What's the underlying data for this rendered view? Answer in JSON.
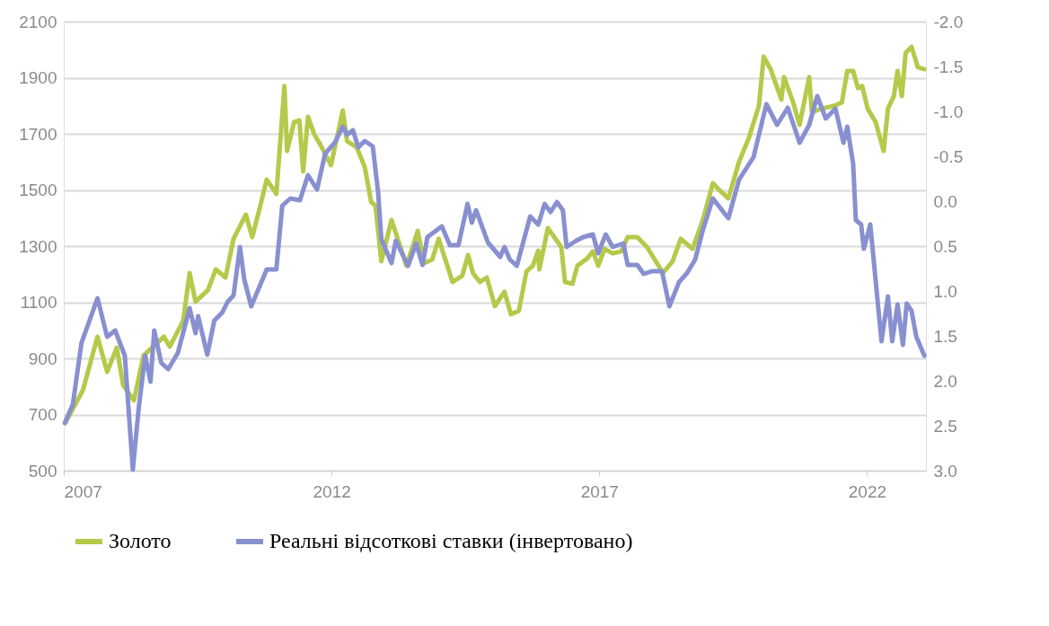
{
  "chart_data": {
    "type": "line",
    "xlim": [
      2007,
      2023.1
    ],
    "xticks": [
      2007,
      2012,
      2017,
      2022
    ],
    "ylim": [
      500,
      2100
    ],
    "yticks": [
      500,
      700,
      900,
      1100,
      1300,
      1500,
      1700,
      1900,
      2100
    ],
    "y2lim": [
      3.0,
      -2.0
    ],
    "y2ticks": [
      {
        "value": -2,
        "label": "-2.0"
      },
      {
        "value": -1.5,
        "label": "-1.5"
      },
      {
        "value": -1,
        "label": "-1.0"
      },
      {
        "value": -0.5,
        "label": "-0.5"
      },
      {
        "value": 0,
        "label": "0.0"
      },
      {
        "value": 0.5,
        "label": "0.5"
      },
      {
        "value": 1,
        "label": "1.0"
      },
      {
        "value": 1.5,
        "label": "1.5"
      },
      {
        "value": 2,
        "label": "2.0"
      },
      {
        "value": 2.5,
        "label": "2.5"
      },
      {
        "value": 3,
        "label": "3.0"
      }
    ],
    "grid": "y",
    "legend": "bottom",
    "marker": "none",
    "line_style": "solid",
    "series": [
      {
        "name": "Золото",
        "color": "#b5c94a",
        "x": [
          2007.03,
          2007.36,
          2007.63,
          2007.81,
          2007.99,
          2008.11,
          2008.31,
          2008.49,
          2008.87,
          2008.98,
          2009.23,
          2009.35,
          2009.46,
          2009.69,
          2009.84,
          2010.02,
          2010.17,
          2010.4,
          2010.52,
          2010.67,
          2010.79,
          2010.97,
          2011.12,
          2011.17,
          2011.3,
          2011.4,
          2011.47,
          2011.56,
          2011.68,
          2011.79,
          2011.99,
          2012.21,
          2012.29,
          2012.47,
          2012.62,
          2012.74,
          2012.82,
          2012.93,
          2013.12,
          2013.4,
          2013.61,
          2013.73,
          2013.88,
          2014.0,
          2014.26,
          2014.44,
          2014.55,
          2014.64,
          2014.77,
          2014.9,
          2015.05,
          2015.23,
          2015.35,
          2015.5,
          2015.64,
          2015.76,
          2015.86,
          2015.88,
          2016.04,
          2016.29,
          2016.36,
          2016.5,
          2016.59,
          2016.77,
          2016.88,
          2016.98,
          2017.1,
          2017.25,
          2017.41,
          2017.53,
          2017.71,
          2017.89,
          2018.19,
          2018.37,
          2018.52,
          2018.74,
          2018.93,
          2019.12,
          2019.23,
          2019.41,
          2019.61,
          2019.79,
          2019.98,
          2020.07,
          2020.2,
          2020.4,
          2020.45,
          2020.62,
          2020.74,
          2020.92,
          2020.97,
          2021.15,
          2021.38,
          2021.53,
          2021.63,
          2021.74,
          2021.83,
          2021.91,
          2022.01,
          2022.16,
          2022.31,
          2022.39,
          2022.5,
          2022.57,
          2022.65,
          2022.72,
          2022.83,
          2022.95,
          2023.07
        ],
        "values": [
          670,
          788,
          977,
          852,
          938,
          804,
          750,
          910,
          977,
          942,
          1034,
          1204,
          1102,
          1143,
          1217,
          1188,
          1326,
          1412,
          1332,
          1444,
          1537,
          1486,
          1870,
          1639,
          1742,
          1748,
          1566,
          1761,
          1697,
          1662,
          1588,
          1783,
          1674,
          1652,
          1582,
          1457,
          1444,
          1246,
          1393,
          1230,
          1354,
          1239,
          1252,
          1326,
          1172,
          1194,
          1268,
          1204,
          1172,
          1188,
          1086,
          1137,
          1057,
          1070,
          1210,
          1230,
          1284,
          1217,
          1364,
          1297,
          1172,
          1166,
          1230,
          1255,
          1281,
          1230,
          1290,
          1274,
          1281,
          1332,
          1332,
          1297,
          1204,
          1246,
          1326,
          1290,
          1390,
          1524,
          1502,
          1470,
          1601,
          1684,
          1799,
          1975,
          1930,
          1822,
          1902,
          1812,
          1732,
          1902,
          1777,
          1790,
          1799,
          1812,
          1924,
          1924,
          1863,
          1870,
          1790,
          1742,
          1639,
          1790,
          1834,
          1924,
          1834,
          1988,
          2010,
          1937,
          1930
        ]
      },
      {
        "name": "Реальні відсоткові ставки (інвертовано)",
        "color": "#8890d0",
        "axis": "y2",
        "x": [
          2007.02,
          2007.17,
          2007.33,
          2007.63,
          2007.81,
          2007.96,
          2008.14,
          2008.29,
          2008.4,
          2008.52,
          2008.62,
          2008.69,
          2008.82,
          2008.95,
          2009.13,
          2009.35,
          2009.46,
          2009.51,
          2009.68,
          2009.81,
          2009.96,
          2010.06,
          2010.17,
          2010.29,
          2010.37,
          2010.5,
          2010.79,
          2010.97,
          2011.08,
          2011.23,
          2011.41,
          2011.56,
          2011.73,
          2011.88,
          2012.06,
          2012.21,
          2012.29,
          2012.4,
          2012.5,
          2012.62,
          2012.77,
          2012.87,
          2012.93,
          2013.12,
          2013.2,
          2013.43,
          2013.58,
          2013.7,
          2013.79,
          2014.06,
          2014.21,
          2014.37,
          2014.54,
          2014.62,
          2014.7,
          2014.92,
          2015.15,
          2015.23,
          2015.33,
          2015.46,
          2015.71,
          2015.86,
          2015.98,
          2016.09,
          2016.21,
          2016.32,
          2016.39,
          2016.57,
          2016.7,
          2016.88,
          2016.98,
          2017.12,
          2017.25,
          2017.45,
          2017.53,
          2017.71,
          2017.83,
          2017.98,
          2018.17,
          2018.31,
          2018.49,
          2018.64,
          2018.79,
          2018.93,
          2019.12,
          2019.41,
          2019.61,
          2019.88,
          2020.12,
          2020.32,
          2020.52,
          2020.74,
          2020.92,
          2021.07,
          2021.23,
          2021.41,
          2021.56,
          2021.63,
          2021.74,
          2021.79,
          2021.89,
          2021.94,
          2022.06,
          2022.27,
          2022.39,
          2022.47,
          2022.57,
          2022.67,
          2022.74,
          2022.83,
          2022.92,
          2023.07
        ],
        "values": [
          2.47,
          2.26,
          1.58,
          1.08,
          1.51,
          1.44,
          1.72,
          2.99,
          2.3,
          1.72,
          2.01,
          1.44,
          1.8,
          1.87,
          1.69,
          1.19,
          1.47,
          1.28,
          1.71,
          1.33,
          1.24,
          1.12,
          1.05,
          0.51,
          0.87,
          1.17,
          0.76,
          0.76,
          0.05,
          -0.03,
          -0.01,
          -0.29,
          -0.13,
          -0.53,
          -0.65,
          -0.83,
          -0.74,
          -0.79,
          -0.6,
          -0.67,
          -0.61,
          -0.1,
          0.42,
          0.69,
          0.44,
          0.72,
          0.47,
          0.71,
          0.4,
          0.28,
          0.49,
          0.49,
          0.03,
          0.24,
          0.1,
          0.46,
          0.62,
          0.51,
          0.65,
          0.72,
          0.17,
          0.26,
          0.03,
          0.12,
          0.01,
          0.1,
          0.51,
          0.44,
          0.4,
          0.37,
          0.58,
          0.37,
          0.51,
          0.47,
          0.71,
          0.71,
          0.81,
          0.78,
          0.78,
          1.17,
          0.9,
          0.8,
          0.65,
          0.33,
          -0.03,
          0.19,
          -0.24,
          -0.49,
          -1.08,
          -0.85,
          -1.04,
          -0.65,
          -0.85,
          -1.17,
          -0.92,
          -1.03,
          -0.65,
          -0.83,
          -0.42,
          0.21,
          0.26,
          0.53,
          0.26,
          1.56,
          1.06,
          1.56,
          1.15,
          1.6,
          1.14,
          1.22,
          1.51,
          1.72
        ]
      }
    ]
  }
}
